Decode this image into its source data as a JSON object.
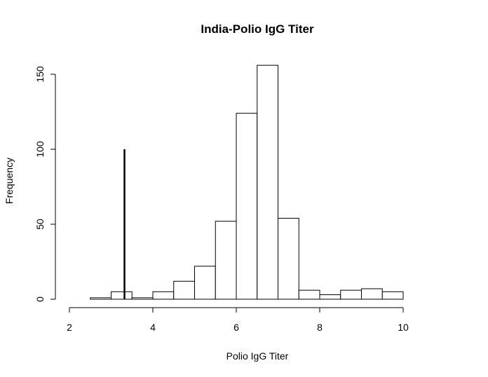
{
  "chart_data": {
    "type": "bar",
    "title": "India-Polio IgG Titer",
    "xlabel": "Polio IgG Titer",
    "ylabel": "Frequency",
    "xlim": [
      2,
      10
    ],
    "ylim": [
      0,
      160
    ],
    "x_ticks": [
      "2",
      "4",
      "6",
      "8",
      "10"
    ],
    "y_ticks": [
      "0",
      "50",
      "100",
      "150"
    ],
    "bins": [
      {
        "x0": 2.5,
        "x1": 3.0,
        "count": 1
      },
      {
        "x0": 3.0,
        "x1": 3.5,
        "count": 5
      },
      {
        "x0": 3.5,
        "x1": 4.0,
        "count": 1
      },
      {
        "x0": 4.0,
        "x1": 4.5,
        "count": 5
      },
      {
        "x0": 4.5,
        "x1": 5.0,
        "count": 12
      },
      {
        "x0": 5.0,
        "x1": 5.5,
        "count": 22
      },
      {
        "x0": 5.5,
        "x1": 6.0,
        "count": 52
      },
      {
        "x0": 6.0,
        "x1": 6.5,
        "count": 124
      },
      {
        "x0": 6.5,
        "x1": 7.0,
        "count": 156
      },
      {
        "x0": 7.0,
        "x1": 7.5,
        "count": 54
      },
      {
        "x0": 7.5,
        "x1": 8.0,
        "count": 6
      },
      {
        "x0": 8.0,
        "x1": 8.5,
        "count": 3
      },
      {
        "x0": 8.5,
        "x1": 9.0,
        "count": 6
      },
      {
        "x0": 9.0,
        "x1": 9.5,
        "count": 7
      },
      {
        "x0": 9.5,
        "x1": 10.0,
        "count": 5
      }
    ],
    "reference_line": {
      "x": 3.32,
      "y0": 0,
      "y1": 100
    },
    "grid": false,
    "legend": "none"
  }
}
